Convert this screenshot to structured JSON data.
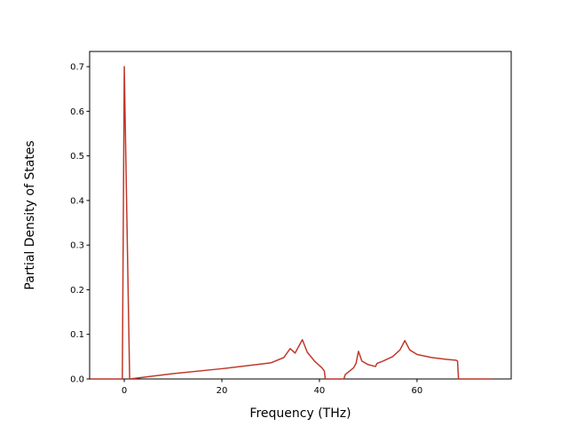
{
  "chart_data": {
    "type": "line",
    "x_label": "Frequency (THz)",
    "y_label": "Partial Density of States",
    "x": [
      -7,
      -0.4,
      0,
      1.1,
      10,
      20,
      30,
      32.7,
      34,
      35,
      36.5,
      37.5,
      39,
      40.5,
      41,
      41.2,
      45,
      45.3,
      47,
      47.5,
      48,
      48.7,
      50,
      51.5,
      51.8,
      53,
      55,
      56.5,
      57.5,
      58.5,
      60,
      63,
      66,
      68,
      68.3,
      68.5,
      75.3
    ],
    "values": [
      0,
      0,
      0.7,
      0,
      0.012,
      0.023,
      0.036,
      0.048,
      0.068,
      0.058,
      0.088,
      0.06,
      0.04,
      0.025,
      0.018,
      0,
      0,
      0.01,
      0.025,
      0.035,
      0.062,
      0.04,
      0.032,
      0.028,
      0.035,
      0.04,
      0.05,
      0.065,
      0.086,
      0.065,
      0.055,
      0.048,
      0.044,
      0.042,
      0.04,
      0,
      0
    ],
    "color": "#c0392b",
    "xlim": [
      -7.1,
      79.3
    ],
    "ylim": [
      0,
      0.734
    ],
    "xticks": [
      0,
      20,
      40,
      60
    ],
    "yticks": [
      {
        "value": 0,
        "label": "0.0"
      },
      0.1,
      0.2,
      0.3,
      0.4,
      0.5,
      0.6,
      0.7
    ]
  }
}
